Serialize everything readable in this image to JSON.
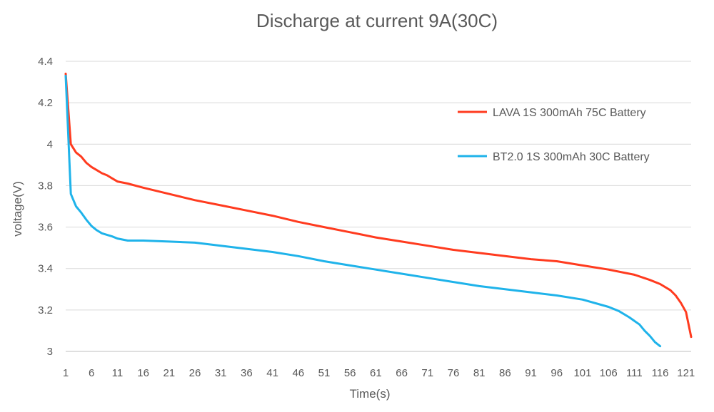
{
  "chart_data": {
    "type": "line",
    "title": "Discharge at current 9A(30C)",
    "xlabel": "Time(s)",
    "ylabel": "voltage(V)",
    "xlim": [
      1,
      122
    ],
    "ylim": [
      3,
      4.4
    ],
    "y_ticks": [
      "3",
      "3.2",
      "3.4",
      "3.6",
      "3.8",
      "4",
      "4.2",
      "4.4"
    ],
    "x_ticks": [
      "1",
      "6",
      "11",
      "16",
      "21",
      "26",
      "31",
      "36",
      "41",
      "46",
      "51",
      "56",
      "61",
      "66",
      "71",
      "76",
      "81",
      "86",
      "91",
      "96",
      "101",
      "106",
      "111",
      "116",
      "121"
    ],
    "grid": "horizontal",
    "legend_position": "right",
    "series": [
      {
        "name": "LAVA 1S 300mAh 75C Battery",
        "color": "#ff3b1f",
        "points": [
          [
            1,
            4.34
          ],
          [
            2,
            4.0
          ],
          [
            3,
            3.96
          ],
          [
            4,
            3.94
          ],
          [
            5,
            3.91
          ],
          [
            6,
            3.89
          ],
          [
            7,
            3.875
          ],
          [
            8,
            3.86
          ],
          [
            9,
            3.85
          ],
          [
            10,
            3.835
          ],
          [
            11,
            3.82
          ],
          [
            13,
            3.81
          ],
          [
            16,
            3.79
          ],
          [
            21,
            3.76
          ],
          [
            26,
            3.73
          ],
          [
            31,
            3.705
          ],
          [
            36,
            3.68
          ],
          [
            41,
            3.655
          ],
          [
            46,
            3.625
          ],
          [
            51,
            3.6
          ],
          [
            56,
            3.575
          ],
          [
            61,
            3.55
          ],
          [
            66,
            3.53
          ],
          [
            71,
            3.51
          ],
          [
            76,
            3.49
          ],
          [
            81,
            3.475
          ],
          [
            86,
            3.46
          ],
          [
            91,
            3.445
          ],
          [
            96,
            3.435
          ],
          [
            101,
            3.415
          ],
          [
            106,
            3.395
          ],
          [
            111,
            3.37
          ],
          [
            114,
            3.345
          ],
          [
            116,
            3.325
          ],
          [
            118,
            3.295
          ],
          [
            119,
            3.27
          ],
          [
            120,
            3.235
          ],
          [
            121,
            3.19
          ],
          [
            122,
            3.07
          ]
        ]
      },
      {
        "name": "BT2.0 1S 300mAh 30C Battery",
        "color": "#1fb3ea",
        "points": [
          [
            1,
            4.33
          ],
          [
            2,
            3.76
          ],
          [
            3,
            3.7
          ],
          [
            4,
            3.67
          ],
          [
            5,
            3.635
          ],
          [
            6,
            3.605
          ],
          [
            7,
            3.585
          ],
          [
            8,
            3.57
          ],
          [
            10,
            3.555
          ],
          [
            11,
            3.545
          ],
          [
            13,
            3.535
          ],
          [
            16,
            3.535
          ],
          [
            21,
            3.53
          ],
          [
            26,
            3.525
          ],
          [
            31,
            3.51
          ],
          [
            36,
            3.495
          ],
          [
            41,
            3.48
          ],
          [
            46,
            3.46
          ],
          [
            51,
            3.435
          ],
          [
            56,
            3.415
          ],
          [
            61,
            3.395
          ],
          [
            66,
            3.375
          ],
          [
            71,
            3.355
          ],
          [
            76,
            3.335
          ],
          [
            81,
            3.315
          ],
          [
            86,
            3.3
          ],
          [
            91,
            3.285
          ],
          [
            96,
            3.27
          ],
          [
            101,
            3.25
          ],
          [
            106,
            3.215
          ],
          [
            108,
            3.195
          ],
          [
            110,
            3.165
          ],
          [
            112,
            3.13
          ],
          [
            113,
            3.1
          ],
          [
            114,
            3.075
          ],
          [
            115,
            3.045
          ],
          [
            116,
            3.025
          ]
        ]
      }
    ]
  }
}
